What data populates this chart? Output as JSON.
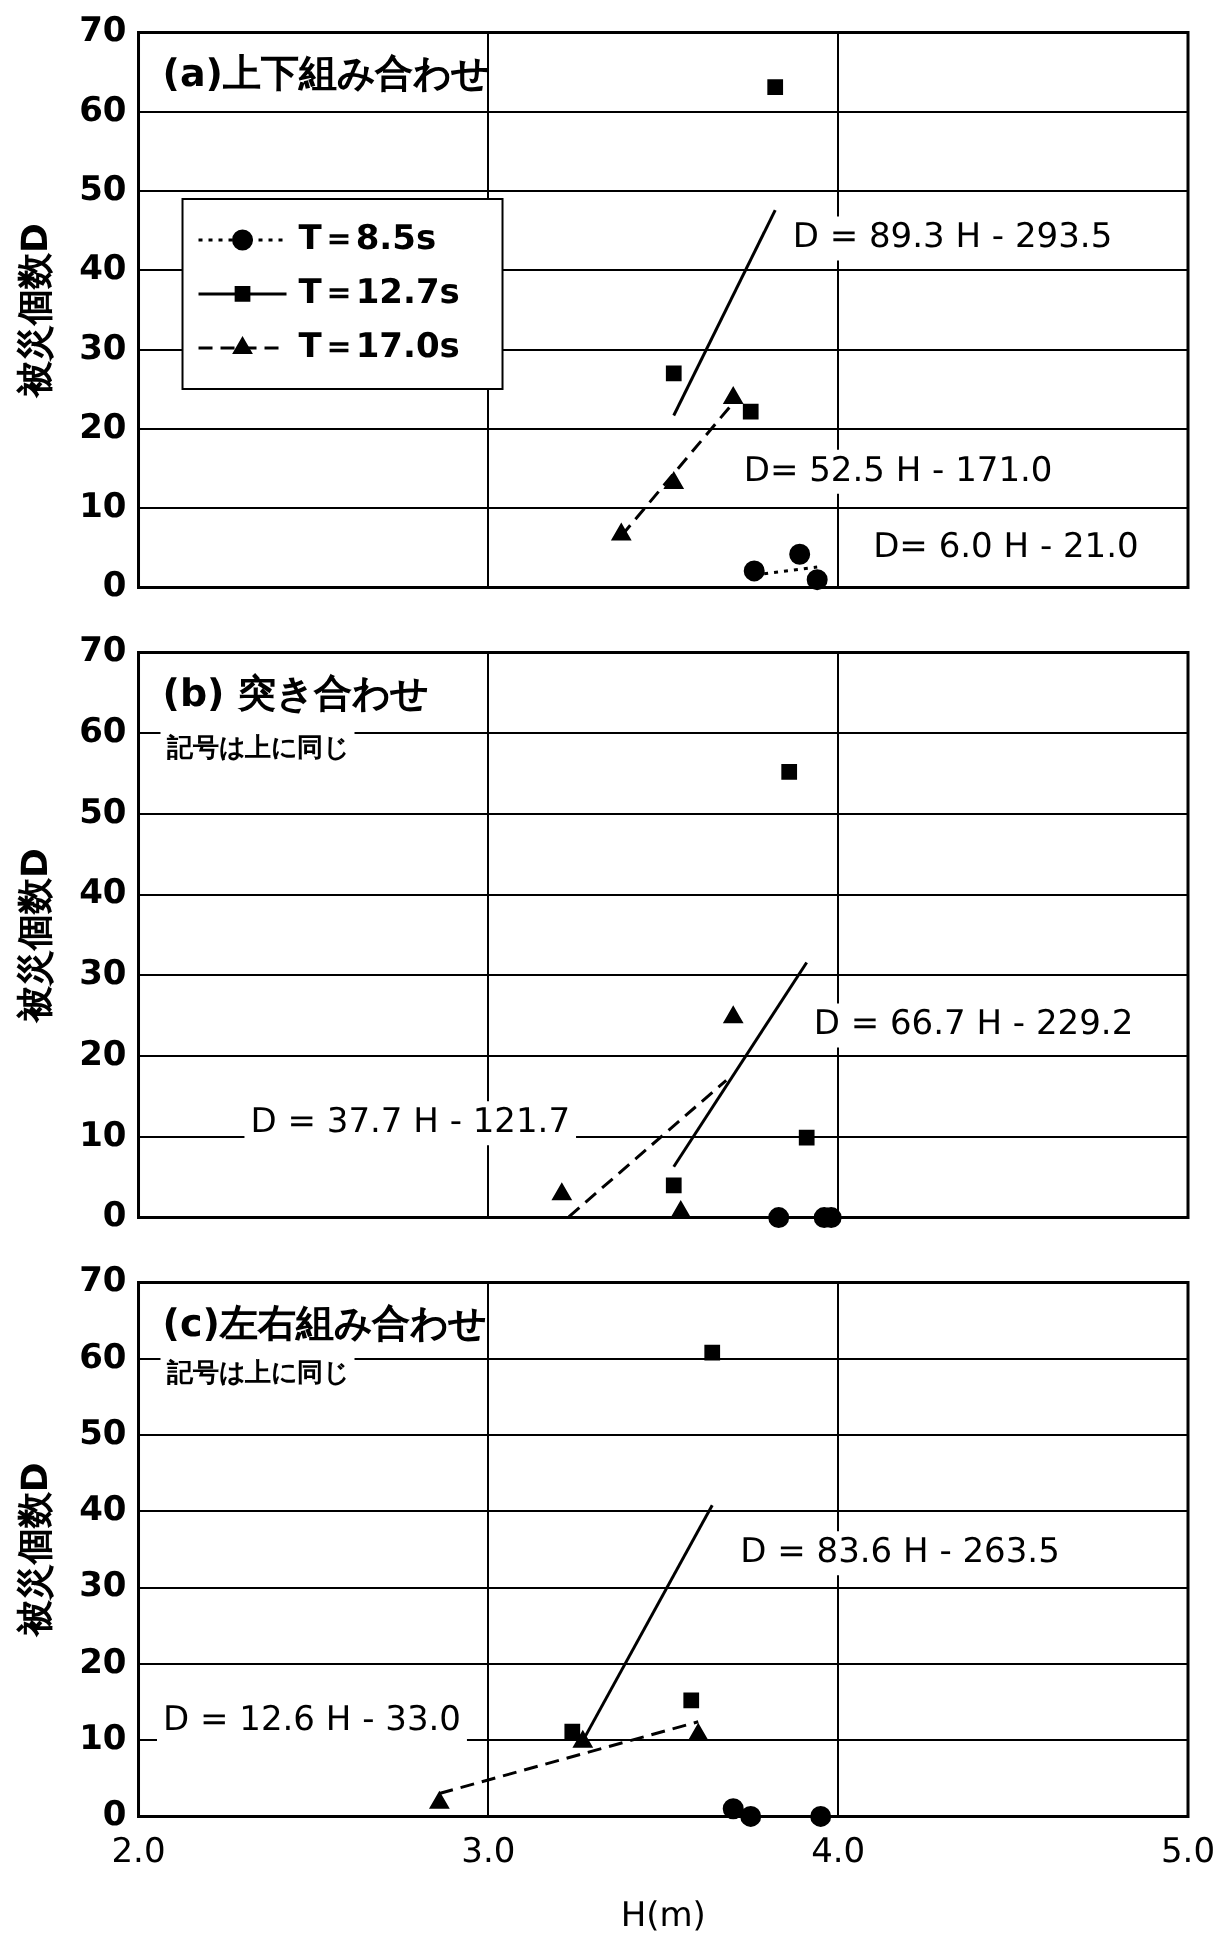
{
  "chart_data": [
    {
      "type": "scatter",
      "title": "(a)上下組み合わせ",
      "ylabel": "被災個数D",
      "xlim": [
        2,
        5
      ],
      "xticks": [
        2,
        3,
        4,
        5
      ],
      "ylim": [
        0,
        70
      ],
      "yticks": [
        0,
        10,
        20,
        30,
        40,
        50,
        60,
        70
      ],
      "grid": true,
      "tick_labels": "y",
      "legend": "left",
      "series": [
        {
          "name": "T＝8.5s",
          "color": "#000000",
          "marker": "circle",
          "line_style": "dotted",
          "x": [
            3.76,
            3.89,
            3.94
          ],
          "values": [
            2.1,
            4.2,
            1.0
          ]
        },
        {
          "name": "T＝12.7s",
          "color": "#000000",
          "marker": "square",
          "line_style": "solid",
          "x": [
            3.82,
            3.53,
            3.75
          ],
          "values": [
            63.1,
            27.0,
            22.2
          ]
        },
        {
          "name": "T＝17.0s",
          "color": "#000000",
          "marker": "triangle",
          "line_style": "dashed",
          "x": [
            3.38,
            3.53,
            3.7
          ],
          "values": [
            6.7,
            13.2,
            23.9
          ]
        },
        {
          "type": "line",
          "color": "#000000",
          "marker": "none",
          "line_style": "dotted",
          "x": [
            3.76,
            3.94
          ],
          "values": [
            1.6,
            2.6
          ]
        },
        {
          "type": "line",
          "color": "#000000",
          "marker": "none",
          "line_style": "solid",
          "x": [
            3.53,
            3.82
          ],
          "values": [
            21.7,
            47.6
          ]
        },
        {
          "type": "line",
          "color": "#000000",
          "marker": "none",
          "line_style": "dashed",
          "x": [
            3.38,
            3.7
          ],
          "values": [
            6.5,
            23.3
          ]
        }
      ],
      "annotations": [
        "D = 89.3 H - 293.5",
        "D= 52.5 H - 171.0",
        "D= 6.0 H - 21.0"
      ]
    },
    {
      "type": "scatter",
      "title": "(b) 突き合わせ",
      "ylabel": "被災個数D",
      "xlim": [
        2,
        5
      ],
      "xticks": [
        2,
        3,
        4,
        5
      ],
      "ylim": [
        0,
        70
      ],
      "yticks": [
        0,
        10,
        20,
        30,
        40,
        50,
        60,
        70
      ],
      "grid": true,
      "tick_labels": "y",
      "series": [
        {
          "color": "#000000",
          "marker": "circle",
          "x": [
            3.83,
            3.96,
            3.98
          ],
          "values": [
            0,
            0,
            0
          ]
        },
        {
          "color": "#000000",
          "marker": "square",
          "x": [
            3.86,
            3.91,
            3.53
          ],
          "values": [
            55.2,
            9.9,
            4.0
          ]
        },
        {
          "color": "#000000",
          "marker": "triangle",
          "x": [
            3.21,
            3.55,
            3.7
          ],
          "values": [
            2.9,
            0.7,
            24.8
          ]
        },
        {
          "type": "line",
          "color": "#000000",
          "marker": "none",
          "line_style": "solid",
          "x": [
            3.53,
            3.91
          ],
          "values": [
            6.3,
            31.6
          ]
        },
        {
          "type": "line",
          "color": "#000000",
          "marker": "none",
          "line_style": "dashed",
          "x": [
            3.23,
            3.68
          ],
          "values": [
            0.1,
            17.0
          ]
        }
      ],
      "annotations": [
        "記号は上に同じ",
        "D = 66.7 H - 229.2",
        "D = 37.7 H - 121.7"
      ]
    },
    {
      "type": "scatter",
      "title": "(c)左右組み合わせ",
      "xlabel": "H(m)",
      "ylabel": "被災個数D",
      "xlim": [
        2,
        5
      ],
      "xticks": [
        {
          "value": 2,
          "label": "2.0"
        },
        {
          "value": 3,
          "label": "3.0"
        },
        {
          "value": 4,
          "label": "4.0"
        },
        {
          "value": 5,
          "label": "5.0"
        }
      ],
      "ylim": [
        0,
        70
      ],
      "yticks": [
        0,
        10,
        20,
        30,
        40,
        50,
        60,
        70
      ],
      "grid": true,
      "series": [
        {
          "color": "#000000",
          "marker": "circle",
          "x": [
            3.7,
            3.75,
            3.95
          ],
          "values": [
            1.0,
            0,
            0
          ]
        },
        {
          "color": "#000000",
          "marker": "square",
          "x": [
            3.64,
            3.58,
            3.24
          ],
          "values": [
            60.8,
            15.2,
            11.1
          ]
        },
        {
          "color": "#000000",
          "marker": "triangle",
          "x": [
            2.86,
            3.27,
            3.6
          ],
          "values": [
            1.8,
            9.8,
            10.7
          ]
        },
        {
          "type": "line",
          "color": "#000000",
          "marker": "none",
          "line_style": "solid",
          "x": [
            3.27,
            3.64
          ],
          "values": [
            9.9,
            40.8
          ]
        },
        {
          "type": "line",
          "color": "#000000",
          "marker": "none",
          "line_style": "dashed",
          "x": [
            2.86,
            3.6
          ],
          "values": [
            3.0,
            12.4
          ]
        }
      ],
      "annotations": [
        "記号は上に同じ",
        "D = 83.6 H - 263.5",
        "D = 12.6 H - 33.0"
      ]
    }
  ]
}
